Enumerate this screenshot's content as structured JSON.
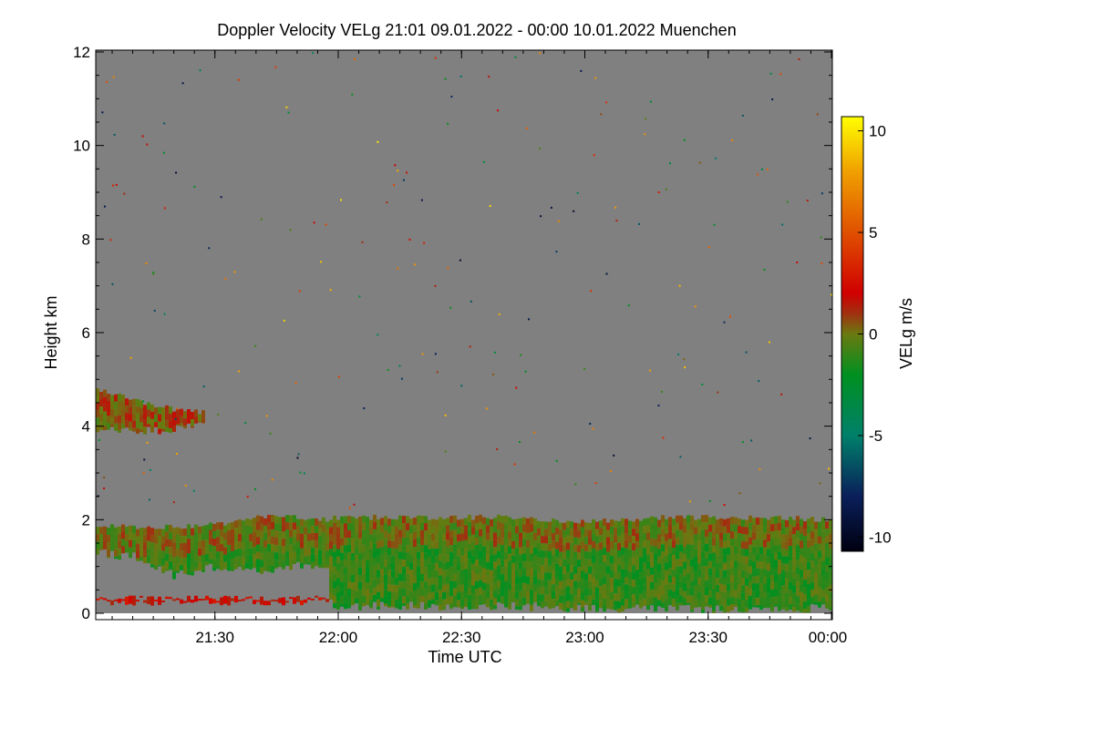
{
  "chart_data": {
    "type": "heatmap",
    "title": "Doppler Velocity VELg   21:01 09.01.2022 - 00:00 10.01.2022 Muenchen",
    "xlabel": "Time UTC",
    "ylabel": "Height km",
    "x_range_minutes_after_2100": [
      1,
      180
    ],
    "x_ticks": [
      {
        "label": "21:30",
        "minute": 30
      },
      {
        "label": "22:00",
        "minute": 60
      },
      {
        "label": "22:30",
        "minute": 90
      },
      {
        "label": "23:00",
        "minute": 120
      },
      {
        "label": "23:30",
        "minute": 150
      },
      {
        "label": "00:00",
        "minute": 180
      }
    ],
    "ylim": [
      0,
      12
    ],
    "y_ticks": [
      "0",
      "2",
      "4",
      "6",
      "8",
      "10",
      "12"
    ],
    "background_color": "#808080",
    "colorbar": {
      "label": "VELg m/s",
      "range": [
        -10.7,
        10.7
      ],
      "ticks": [
        "10",
        "5",
        "0",
        "-5",
        "-10"
      ],
      "tick_values": [
        10,
        5,
        0,
        -5,
        -10
      ],
      "stops": [
        {
          "v": -10.7,
          "color": "#000010"
        },
        {
          "v": -8,
          "color": "#0a1f5a"
        },
        {
          "v": -5,
          "color": "#00806a"
        },
        {
          "v": -2,
          "color": "#009020"
        },
        {
          "v": 0,
          "color": "#6a7a10"
        },
        {
          "v": 1,
          "color": "#a03010"
        },
        {
          "v": 2,
          "color": "#d00000"
        },
        {
          "v": 5,
          "color": "#e05000"
        },
        {
          "v": 8,
          "color": "#f0a000"
        },
        {
          "v": 10.7,
          "color": "#ffff00"
        }
      ]
    },
    "layers": [
      {
        "name": "mid-level cloud",
        "minutes": [
          1,
          5,
          10,
          15,
          20,
          27
        ],
        "top_km": [
          4.75,
          4.7,
          4.55,
          4.45,
          4.35,
          4.3
        ],
        "base_km": [
          3.95,
          3.95,
          3.9,
          3.9,
          3.95,
          4.1
        ],
        "mean_velocity": -0.4
      },
      {
        "name": "boundary-layer cloud",
        "minutes": [
          1,
          10,
          20,
          30,
          40,
          50,
          57,
          58,
          65,
          80,
          100,
          120,
          140,
          160,
          180
        ],
        "top_km": [
          1.85,
          1.85,
          1.85,
          1.9,
          2.05,
          2.05,
          2.0,
          2.05,
          2.05,
          2.05,
          2.05,
          1.95,
          2.05,
          2.05,
          2.0
        ],
        "base_km": [
          1.3,
          1.2,
          0.8,
          1.0,
          0.9,
          1.0,
          0.9,
          0.1,
          0.15,
          0.15,
          0.15,
          0.1,
          0.1,
          0.1,
          0.1
        ],
        "mean_velocity": -1.0
      },
      {
        "name": "low echo line",
        "minutes": [
          1,
          57
        ],
        "top_km": [
          0.32,
          0.32
        ],
        "base_km": [
          0.26,
          0.26
        ],
        "mean_velocity": 2.0
      }
    ]
  }
}
